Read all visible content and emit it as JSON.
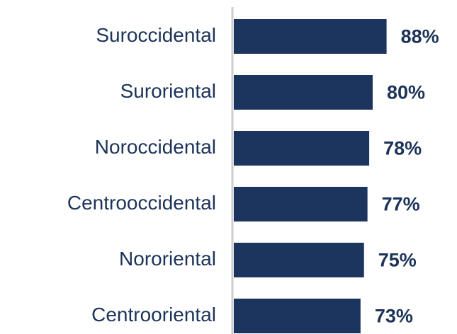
{
  "chart_data": {
    "type": "bar",
    "orientation": "horizontal",
    "categories": [
      "Suroccidental",
      "Suroriental",
      "Noroccidental",
      "Centrooccidental",
      "Nororiental",
      "Centrooriental"
    ],
    "values": [
      88,
      80,
      78,
      77,
      75,
      73
    ],
    "value_labels": [
      "88%",
      "80%",
      "78%",
      "77%",
      "75%",
      "73%"
    ],
    "color": "#1c355e",
    "xlim": [
      0,
      100
    ]
  }
}
